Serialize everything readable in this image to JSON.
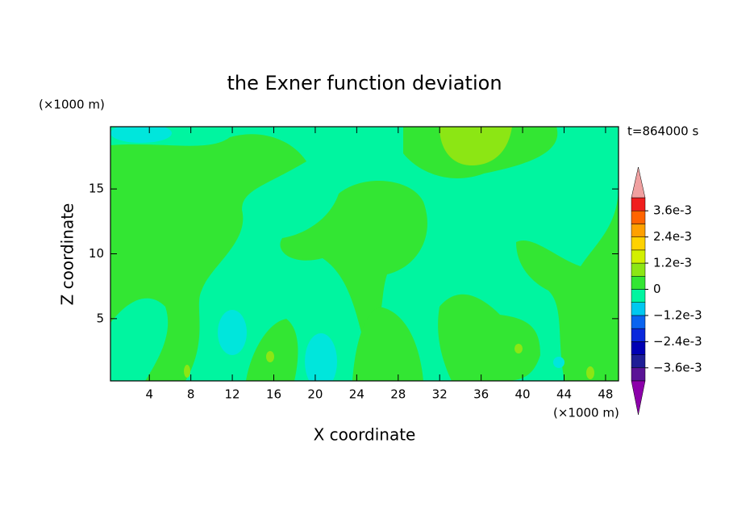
{
  "chart_data": {
    "type": "contour",
    "title": "the Exner function deviation",
    "xlabel": "X coordinate",
    "ylabel": "Z coordinate",
    "x_unit": "(×1000 m)",
    "y_unit": "(×1000 m)",
    "annotation": "t=864000 s",
    "xlim": [
      0.25,
      49.25
    ],
    "ylim": [
      0.2,
      19.8
    ],
    "xticks": [
      4,
      8,
      12,
      16,
      20,
      24,
      28,
      32,
      36,
      40,
      44,
      48
    ],
    "yticks": [
      5,
      10,
      15
    ],
    "levels": [
      -0.0042,
      -0.0036,
      -0.003,
      -0.0024,
      -0.0018,
      -0.0012,
      -0.0006,
      0,
      0.0006,
      0.0012,
      0.0018,
      0.0024,
      0.003,
      0.0036,
      0.0042
    ],
    "colors": [
      "#5a1496",
      "#1e1e96",
      "#0000b4",
      "#0a28dc",
      "#0a64f0",
      "#00c8f0",
      "#00f5a0",
      "#33e633",
      "#8ce614",
      "#d2f000",
      "#ffd200",
      "#ffa000",
      "#ff6400",
      "#f01e1e"
    ],
    "under_color": "#8c00aa",
    "over_color": "#f0a0a0",
    "cbar_ticks": [
      {
        "value": 0.0036,
        "label": "3.6e-3"
      },
      {
        "value": 0.0024,
        "label": "2.4e-3"
      },
      {
        "value": 0.0012,
        "label": "1.2e-3"
      },
      0,
      {
        "value": -0.0012,
        "label": "−1.2e-3"
      },
      {
        "value": -0.0024,
        "label": "−2.4e-3"
      },
      {
        "value": -0.0036,
        "label": "−3.6e-3"
      }
    ]
  }
}
